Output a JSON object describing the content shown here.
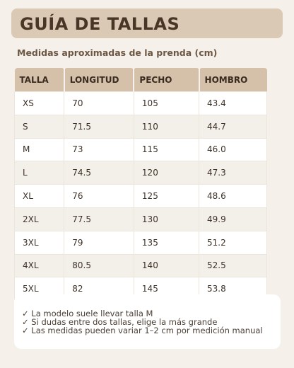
{
  "header": {
    "title": "GUÍA DE TALLAS",
    "subtitle": "Medidas aproximadas de la prenda (cm)"
  },
  "table": {
    "columns": [
      "TALLA",
      "LONGITUD",
      "PECHO",
      "HOMBRO"
    ],
    "rows": [
      [
        "XS",
        "70",
        "105",
        "43.4"
      ],
      [
        "S",
        "71.5",
        "110",
        "44.7"
      ],
      [
        "M",
        "73",
        "115",
        "46.0"
      ],
      [
        "L",
        "74.5",
        "120",
        "47.3"
      ],
      [
        "XL",
        "76",
        "125",
        "48.6"
      ],
      [
        "2XL",
        "77.5",
        "130",
        "49.9"
      ],
      [
        "3XL",
        "79",
        "135",
        "51.2"
      ],
      [
        "4XL",
        "80.5",
        "140",
        "52.5"
      ],
      [
        "5XL",
        "82",
        "145",
        "53.8"
      ]
    ]
  },
  "notes": [
    "✓ La modelo suele llevar talla M",
    "✓ Si dudas entre dos tallas, elige la más grande",
    "✓ Las medidas pueden variar 1–2 cm por medición manual"
  ]
}
